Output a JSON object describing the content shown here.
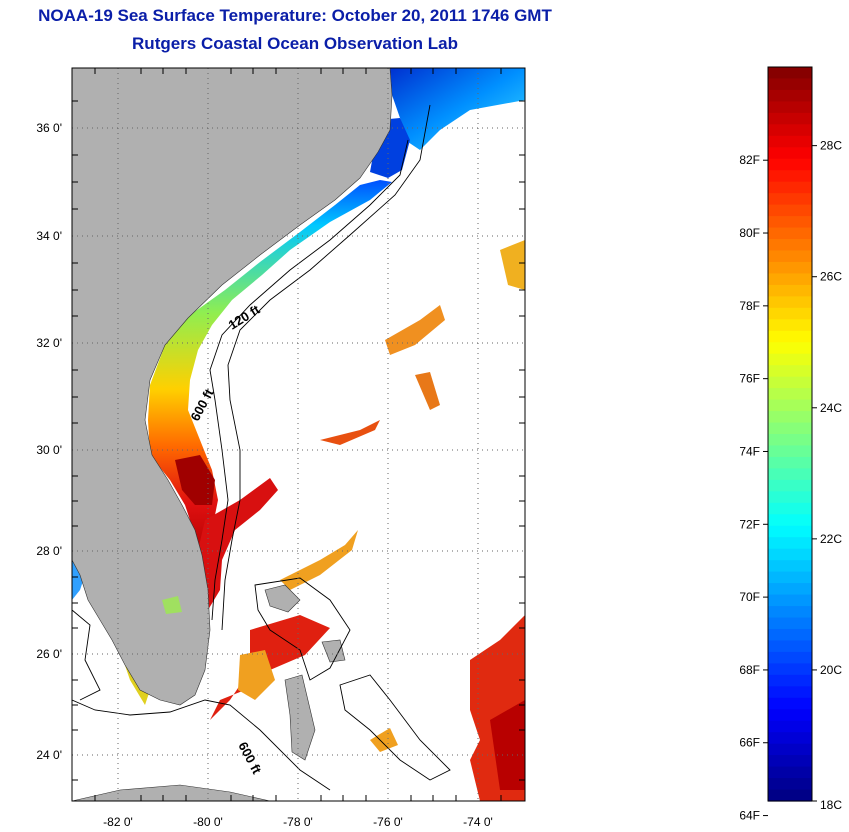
{
  "title": "NOAA-19 Sea Surface Temperature:  October 20, 2011 1746 GMT",
  "subtitle": "Rutgers Coastal Ocean Observation Lab",
  "map": {
    "lat_ticks": [
      {
        "value": 36,
        "label": "36 0'"
      },
      {
        "value": 34,
        "label": "34 0'"
      },
      {
        "value": 32,
        "label": "32 0'"
      },
      {
        "value": 30,
        "label": "30 0'"
      },
      {
        "value": 28,
        "label": "28 0'"
      },
      {
        "value": 26,
        "label": "26 0'"
      },
      {
        "value": 24,
        "label": "24 0'"
      }
    ],
    "lon_ticks": [
      {
        "value": -82,
        "label": "-82 0'"
      },
      {
        "value": -80,
        "label": "-80 0'"
      },
      {
        "value": -78,
        "label": "-78 0'"
      },
      {
        "value": -76,
        "label": "-76 0'"
      },
      {
        "value": -74,
        "label": "-74 0'"
      }
    ],
    "lat_range": [
      23,
      37.05
    ],
    "lon_range": [
      -83,
      -73
    ],
    "land_color": "#b0b0b0",
    "grid": "dotted",
    "contour_labels": [
      "120 ft",
      "600 ft",
      "600 ft"
    ]
  },
  "colorbar": {
    "range_c": [
      18,
      29.2
    ],
    "fahrenheit_labels": [
      "82F",
      "80F",
      "78F",
      "76F",
      "74F",
      "72F",
      "70F",
      "68F",
      "66F",
      "64F"
    ],
    "celsius_labels": [
      "28C",
      "26C",
      "24C",
      "22C",
      "20C",
      "18C"
    ],
    "colormap": "jet"
  }
}
